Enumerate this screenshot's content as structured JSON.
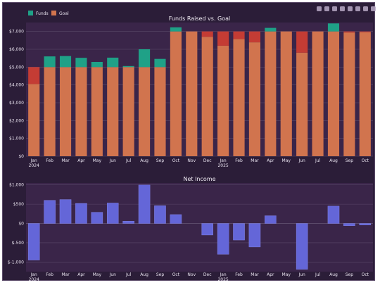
{
  "colors": {
    "paper": "#2b1d38",
    "plot_bg": "#3a2549",
    "grid": "#5b4a6a",
    "funds": "#1fa187",
    "goal": "#d1744e",
    "shortfall": "#c43c34",
    "net": "#6466d8",
    "text": "#e8e2ee"
  },
  "toolbar": {
    "icons": [
      "camera-icon",
      "zoom-icon",
      "pan-icon",
      "zoom-in-icon",
      "zoom-out-icon",
      "autoscale-icon",
      "reset-icon",
      "plotly-logo-icon"
    ]
  },
  "chart_data": [
    {
      "type": "bar",
      "title": "Funds Raised vs. Goal",
      "legend": {
        "placement": "top-left",
        "entries": [
          "Funds",
          "Goal"
        ]
      },
      "categories": [
        "Jan\n2024",
        "Feb",
        "Mar",
        "Apr",
        "May",
        "Jun",
        "Jul",
        "Aug",
        "Sep",
        "Oct",
        "Nov",
        "Dec",
        "Jan\n2025",
        "Feb",
        "Mar",
        "Apr",
        "May",
        "Jun",
        "Jul",
        "Aug",
        "Sep",
        "Oct"
      ],
      "series": [
        {
          "name": "Funds",
          "values": [
            4050,
            5600,
            5620,
            5520,
            5290,
            5530,
            5060,
            6000,
            5460,
            7230,
            7000,
            6700,
            6200,
            6570,
            6390,
            7200,
            7000,
            5810,
            7000,
            7450,
            6940,
            6960
          ]
        },
        {
          "name": "Goal",
          "values": [
            5000,
            5000,
            5000,
            5000,
            5000,
            5000,
            5000,
            5000,
            5000,
            7000,
            7000,
            7000,
            7000,
            7000,
            7000,
            7000,
            7000,
            7000,
            7000,
            7000,
            7000,
            7000
          ]
        }
      ],
      "ylim": [
        0,
        7500
      ],
      "yticks": [
        0,
        1000,
        2000,
        3000,
        4000,
        5000,
        6000,
        7000
      ],
      "ytick_labels": [
        "$0",
        "$1,000",
        "$2,000",
        "$3,000",
        "$4,000",
        "$5,000",
        "$6,000",
        "$7,000"
      ],
      "grid": true
    },
    {
      "type": "bar",
      "title": "Net Income",
      "categories": [
        "Jan\n2024",
        "Feb",
        "Mar",
        "Apr",
        "May",
        "Jun",
        "Jul",
        "Aug",
        "Sep",
        "Oct",
        "Nov",
        "Dec",
        "Jan\n2025",
        "Feb",
        "Mar",
        "Apr",
        "May",
        "Jun",
        "Jul",
        "Aug",
        "Sep",
        "Oct"
      ],
      "values": [
        -950,
        600,
        620,
        520,
        290,
        530,
        60,
        1000,
        460,
        230,
        0,
        -300,
        -800,
        -430,
        -610,
        200,
        0,
        -1190,
        0,
        450,
        -60,
        -40
      ],
      "ylim": [
        -1250,
        1050
      ],
      "yticks": [
        -1000,
        -500,
        0,
        500,
        1000
      ],
      "ytick_labels": [
        "$-1,000",
        "$-500",
        "$0",
        "$500",
        "$1,000"
      ],
      "grid": true
    }
  ]
}
